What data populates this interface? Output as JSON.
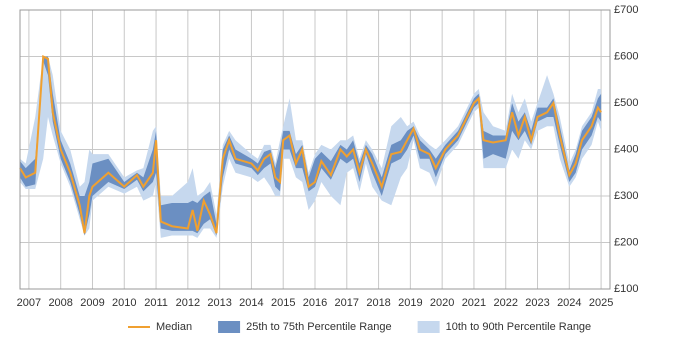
{
  "chart_data": {
    "type": "band-line",
    "x": [
      2006.72,
      2006.9,
      2007.2,
      2007.45,
      2007.6,
      2007.75,
      2008.0,
      2008.3,
      2008.6,
      2008.75,
      2008.9,
      2009.0,
      2009.5,
      2010.0,
      2010.4,
      2010.6,
      2010.9,
      2011.0,
      2011.15,
      2011.5,
      2012.0,
      2012.15,
      2012.3,
      2012.5,
      2012.7,
      2012.9,
      2013.1,
      2013.3,
      2013.5,
      2014.0,
      2014.2,
      2014.4,
      2014.6,
      2014.75,
      2014.9,
      2015.0,
      2015.2,
      2015.4,
      2015.6,
      2015.8,
      2016.0,
      2016.2,
      2016.5,
      2016.8,
      2017.0,
      2017.2,
      2017.4,
      2017.6,
      2017.8,
      2018.1,
      2018.4,
      2018.7,
      2018.9,
      2019.1,
      2019.3,
      2019.6,
      2019.8,
      2020.1,
      2020.5,
      2021.0,
      2021.15,
      2021.3,
      2021.6,
      2022.0,
      2022.2,
      2022.4,
      2022.6,
      2022.8,
      2023.0,
      2023.3,
      2023.5,
      2023.7,
      2024.0,
      2024.2,
      2024.4,
      2024.7,
      2024.9,
      2025.0
    ],
    "series": [
      {
        "name": "Median",
        "color": "#f0a030",
        "values": [
          360,
          340,
          350,
          600,
          595,
          480,
          400,
          350,
          280,
          220,
          300,
          320,
          350,
          320,
          345,
          320,
          350,
          420,
          245,
          235,
          230,
          270,
          225,
          290,
          260,
          220,
          380,
          420,
          380,
          370,
          355,
          380,
          390,
          340,
          330,
          420,
          430,
          370,
          400,
          320,
          330,
          375,
          345,
          400,
          385,
          400,
          350,
          400,
          370,
          320,
          390,
          395,
          420,
          445,
          400,
          390,
          360,
          400,
          430,
          500,
          510,
          420,
          415,
          420,
          480,
          430,
          470,
          420,
          470,
          480,
          500,
          430,
          345,
          370,
          420,
          450,
          490,
          480
        ]
      },
      {
        "name": "25th to 75th Percentile Range",
        "color": "#6b8fc2",
        "low": [
          340,
          320,
          325,
          590,
          560,
          460,
          380,
          330,
          260,
          215,
          260,
          300,
          330,
          315,
          335,
          310,
          330,
          350,
          230,
          225,
          225,
          225,
          220,
          240,
          250,
          215,
          340,
          400,
          370,
          360,
          345,
          360,
          370,
          320,
          310,
          400,
          400,
          360,
          360,
          310,
          320,
          360,
          335,
          380,
          370,
          380,
          330,
          390,
          350,
          300,
          370,
          380,
          400,
          430,
          380,
          380,
          340,
          390,
          420,
          490,
          500,
          380,
          390,
          380,
          440,
          420,
          440,
          410,
          460,
          470,
          470,
          410,
          330,
          350,
          400,
          430,
          470,
          460
        ],
        "high": [
          375,
          360,
          380,
          600,
          600,
          520,
          420,
          370,
          300,
          300,
          330,
          370,
          380,
          330,
          350,
          340,
          400,
          440,
          280,
          285,
          285,
          290,
          285,
          300,
          310,
          240,
          400,
          430,
          400,
          380,
          370,
          395,
          400,
          360,
          400,
          440,
          440,
          390,
          410,
          340,
          380,
          395,
          375,
          410,
          400,
          420,
          370,
          410,
          390,
          340,
          410,
          420,
          440,
          450,
          420,
          400,
          380,
          410,
          440,
          510,
          520,
          440,
          430,
          430,
          500,
          460,
          480,
          440,
          490,
          490,
          510,
          450,
          355,
          390,
          440,
          470,
          510,
          520
        ]
      },
      {
        "name": "10th to 90th Percentile Range",
        "color": "#c6d8ee",
        "low": [
          330,
          315,
          315,
          380,
          470,
          430,
          370,
          320,
          250,
          215,
          230,
          290,
          320,
          305,
          320,
          290,
          300,
          330,
          210,
          215,
          215,
          215,
          210,
          230,
          230,
          210,
          320,
          380,
          350,
          340,
          330,
          340,
          320,
          300,
          300,
          380,
          380,
          340,
          330,
          270,
          290,
          330,
          300,
          280,
          350,
          360,
          310,
          370,
          320,
          290,
          280,
          340,
          360,
          420,
          360,
          350,
          320,
          380,
          410,
          480,
          490,
          360,
          360,
          360,
          400,
          380,
          420,
          400,
          440,
          450,
          450,
          380,
          320,
          340,
          380,
          410,
          460,
          440
        ],
        "high": [
          380,
          370,
          470,
          600,
          600,
          560,
          440,
          400,
          320,
          330,
          400,
          390,
          390,
          340,
          355,
          360,
          440,
          450,
          300,
          300,
          330,
          360,
          300,
          310,
          330,
          260,
          410,
          440,
          420,
          390,
          380,
          410,
          410,
          370,
          420,
          450,
          510,
          420,
          420,
          350,
          390,
          410,
          400,
          420,
          420,
          430,
          380,
          420,
          400,
          360,
          450,
          470,
          450,
          460,
          430,
          410,
          400,
          420,
          450,
          520,
          530,
          480,
          450,
          440,
          520,
          480,
          510,
          460,
          500,
          560,
          520,
          470,
          370,
          400,
          450,
          480,
          530,
          530
        ]
      }
    ],
    "xlim": [
      2006.72,
      2025.28
    ],
    "xticks": [
      2007,
      2008,
      2009,
      2010,
      2011,
      2012,
      2013,
      2014,
      2015,
      2016,
      2017,
      2018,
      2019,
      2020,
      2021,
      2022,
      2023,
      2024,
      2025
    ],
    "ylim": [
      100,
      700
    ],
    "yticks": [
      {
        "value": 100,
        "label": "£100"
      },
      {
        "value": 200,
        "label": "£200"
      },
      {
        "value": 300,
        "label": "£300"
      },
      {
        "value": 400,
        "label": "£400"
      },
      {
        "value": 500,
        "label": "£500"
      },
      {
        "value": 600,
        "label": "£600"
      },
      {
        "value": 700,
        "label": "£700"
      }
    ],
    "grid": true,
    "legend": "bottom"
  }
}
